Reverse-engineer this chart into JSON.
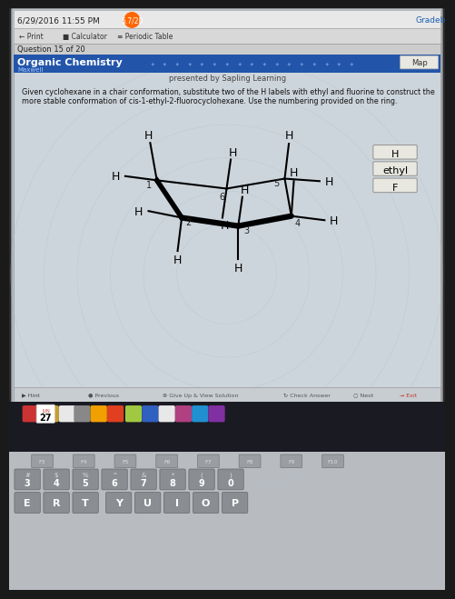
{
  "bg_color": "#1a1a2e",
  "screen_bg": "#c8cfd8",
  "panel_bg": "#dde3ea",
  "title_bar_bg": "#2a5a9f",
  "title_text": "Organic Chemistry",
  "subtitle_text": "Maxwell",
  "presented_by": "presented by Sapling Learning",
  "map_btn": "Map",
  "question_num": "Question 15 of 20",
  "top_bar_text": "6/29/2016 11:55 PM",
  "score_text": "5.7/20",
  "gradebook": "Gradeb",
  "problem_text": "Given cyclohexane in a chair conformation, substitute two of the H labels with ethyl and fluorine to construct the\nmore stable conformation of cis-1-ethyl-2-fluorocyclohexane. Use the numbering provided on the ring.",
  "substituents": [
    "H",
    "ethyl",
    "F"
  ],
  "ring_numbers": [
    "1",
    "2",
    "3",
    "4",
    "5",
    "6"
  ],
  "bottom_btns": [
    "Hint",
    "Previous",
    "Give Up & View Solution",
    "Check Answer",
    "Next",
    "Exit"
  ],
  "keyboard_keys": [
    "#\n3",
    "$\n4",
    "%\n5",
    "^\n6",
    "&\n7",
    "*\n8",
    "(\n9",
    ")\n0"
  ],
  "letter_keys": [
    "E",
    "R",
    "T",
    "Y",
    "U",
    "I",
    "O",
    "P"
  ],
  "fn_keys": [
    "F3",
    "F4",
    "F5",
    "F6",
    "F7",
    "F8",
    "F9",
    "F10"
  ],
  "dock_num": "27"
}
